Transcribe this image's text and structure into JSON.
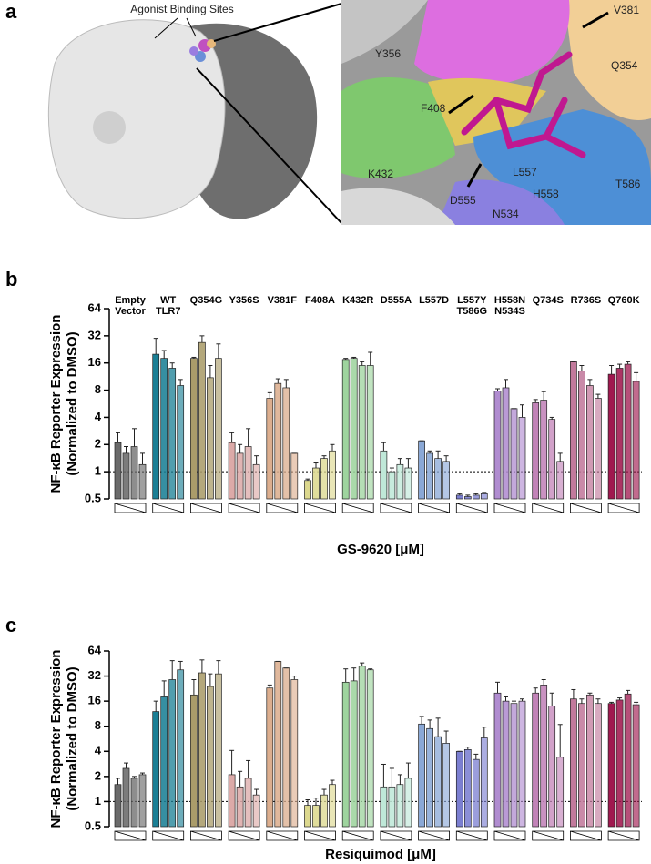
{
  "panel_a": {
    "panel_label": "a",
    "callout": "Agonist Binding Sites",
    "residues": [
      "Y356",
      "V381",
      "Q354",
      "F408",
      "K432",
      "L557",
      "T586",
      "D555",
      "H558",
      "N534"
    ]
  },
  "chart_data": [
    {
      "type": "bar",
      "panel_label": "b",
      "yscale": "log2",
      "ylabel": [
        "NF-κB Reporter Expression",
        "(Normalized to DMSO)"
      ],
      "xlabel": "GS-9620 [μM]",
      "ylim": [
        0.5,
        64
      ],
      "yticks": [
        0.5,
        1,
        2,
        4,
        8,
        16,
        32,
        64
      ],
      "reference_line": 1,
      "groups": [
        {
          "name": [
            "Empty",
            "Vector"
          ],
          "color": "#6a6a6a",
          "values": [
            2.1,
            1.6,
            1.9,
            1.2
          ],
          "errors": [
            0.6,
            0.3,
            1.1,
            0.4
          ]
        },
        {
          "name": [
            "WT",
            "TLR7"
          ],
          "color": "#1a7f95",
          "values": [
            20,
            18,
            14,
            9
          ],
          "errors": [
            10,
            4,
            2,
            1.5
          ]
        },
        {
          "name": [
            "Q354G"
          ],
          "color": "#aa9c6a",
          "values": [
            18,
            27,
            11,
            18
          ],
          "errors": [
            0.5,
            5,
            4,
            8
          ]
        },
        {
          "name": [
            "Y356S"
          ],
          "color": "#dcaaa8",
          "values": [
            2.1,
            1.6,
            1.9,
            1.2
          ],
          "errors": [
            0.6,
            0.4,
            1.1,
            0.3
          ]
        },
        {
          "name": [
            "V381F"
          ],
          "color": "#dcae8e",
          "values": [
            6.5,
            9.5,
            8.5,
            1.6
          ],
          "errors": [
            1,
            1.2,
            2,
            0
          ]
        },
        {
          "name": [
            "F408A"
          ],
          "color": "#dcd88e",
          "values": [
            0.8,
            1.1,
            1.4,
            1.7
          ],
          "errors": [
            0.03,
            0.15,
            0.1,
            0.3
          ]
        },
        {
          "name": [
            "K432R"
          ],
          "color": "#9ed49e",
          "values": [
            17.5,
            18,
            15,
            15
          ],
          "errors": [
            0.5,
            0.5,
            1.5,
            6
          ]
        },
        {
          "name": [
            "D555A"
          ],
          "color": "#bfe8d8",
          "values": [
            1.7,
            1.0,
            1.2,
            1.1
          ],
          "errors": [
            0.4,
            0.1,
            0.2,
            0.3
          ]
        },
        {
          "name": [
            "L557D"
          ],
          "color": "#8aa8d6",
          "values": [
            2.2,
            1.6,
            1.4,
            1.3
          ],
          "errors": [
            0,
            0.1,
            0.3,
            0.2
          ]
        },
        {
          "name": [
            "L557Y",
            "T586G"
          ],
          "color": "#7b7fd1",
          "values": [
            0.55,
            0.53,
            0.55,
            0.57
          ],
          "errors": [
            0.02,
            0.02,
            0.02,
            0.02
          ]
        },
        {
          "name": [
            "H558N",
            "N534S"
          ],
          "color": "#b08cd0",
          "values": [
            7.8,
            8.5,
            5,
            4
          ],
          "errors": [
            0.5,
            2,
            0,
            1.5
          ]
        },
        {
          "name": [
            "Q734S"
          ],
          "color": "#c283b8",
          "values": [
            5.8,
            6.2,
            3.8,
            1.3
          ],
          "errors": [
            0.5,
            1.5,
            0.2,
            0.3
          ]
        },
        {
          "name": [
            "R736S"
          ],
          "color": "#c27a9c",
          "values": [
            16.5,
            13,
            9,
            6.5
          ],
          "errors": [
            0,
            2,
            1.5,
            0.7
          ]
        },
        {
          "name": [
            "Q760K"
          ],
          "color": "#a0184f",
          "values": [
            12,
            14,
            15.5,
            10
          ],
          "errors": [
            3,
            1.5,
            1,
            2.5
          ]
        }
      ]
    },
    {
      "type": "bar",
      "panel_label": "c",
      "yscale": "log2",
      "ylabel": [
        "NF-κB Reporter Expression",
        "(Normalized to DMSO)"
      ],
      "xlabel": "Resiquimod [μM]",
      "ylim": [
        0.5,
        64
      ],
      "yticks": [
        0.5,
        1,
        2,
        4,
        8,
        16,
        32,
        64
      ],
      "reference_line": 1,
      "groups": [
        {
          "color": "#6a6a6a",
          "values": [
            1.6,
            2.5,
            1.9,
            2.1
          ],
          "errors": [
            0.3,
            0.4,
            0.1,
            0.1
          ]
        },
        {
          "color": "#1a7f95",
          "values": [
            12,
            18,
            29,
            38
          ],
          "errors": [
            4,
            10,
            20,
            10
          ]
        },
        {
          "color": "#aa9c6a",
          "values": [
            19,
            35,
            24,
            34
          ],
          "errors": [
            10,
            15,
            10,
            15
          ]
        },
        {
          "color": "#dcaaa8",
          "values": [
            2.1,
            1.5,
            1.9,
            1.2
          ],
          "errors": [
            2,
            0.8,
            1.2,
            0.2
          ]
        },
        {
          "color": "#dcae8e",
          "values": [
            23,
            48,
            40,
            29
          ],
          "errors": [
            2,
            0,
            0,
            3
          ]
        },
        {
          "color": "#dcd88e",
          "values": [
            0.9,
            0.9,
            1.2,
            1.6
          ],
          "errors": [
            0.15,
            0.2,
            0.2,
            0.2
          ]
        },
        {
          "color": "#9ed49e",
          "values": [
            27,
            28,
            42,
            38
          ],
          "errors": [
            12,
            12,
            4,
            1
          ]
        },
        {
          "color": "#bfe8d8",
          "values": [
            1.5,
            1.5,
            1.6,
            1.9
          ],
          "errors": [
            1.3,
            1,
            0.5,
            1
          ]
        },
        {
          "color": "#8aa8d6",
          "values": [
            8.5,
            7.5,
            6,
            5
          ],
          "errors": [
            2,
            2,
            4,
            2
          ]
        },
        {
          "color": "#7b7fd1",
          "values": [
            4,
            4.2,
            3.2,
            5.8
          ],
          "errors": [
            0,
            0.3,
            0.5,
            2
          ]
        },
        {
          "color": "#b08cd0",
          "values": [
            20,
            16,
            15,
            16
          ],
          "errors": [
            7,
            2,
            1,
            1
          ]
        },
        {
          "color": "#c283b8",
          "values": [
            20,
            25,
            14,
            3.4
          ],
          "errors": [
            3,
            4,
            6,
            5
          ]
        },
        {
          "color": "#c27a9c",
          "values": [
            17,
            15,
            19,
            15
          ],
          "errors": [
            5,
            2,
            1,
            2
          ]
        },
        {
          "color": "#a0184f",
          "values": [
            15,
            16.5,
            19.5,
            14.5
          ],
          "errors": [
            0.5,
            1,
            2,
            1
          ]
        }
      ]
    }
  ]
}
